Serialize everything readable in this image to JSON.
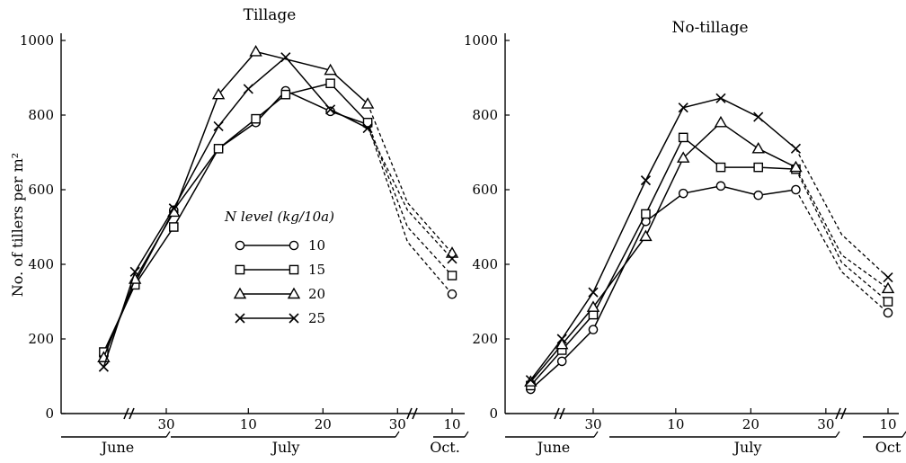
{
  "shared_ylabel": "No. of tillers per m²",
  "legend": {
    "title": "N  level (kg/10a)",
    "items": [
      {
        "label": "10",
        "marker": "circle"
      },
      {
        "label": "15",
        "marker": "square"
      },
      {
        "label": "20",
        "marker": "triangle"
      },
      {
        "label": "25",
        "marker": "cross"
      }
    ]
  },
  "chart_data": [
    {
      "type": "line",
      "title": "Tillage",
      "ylabel": "No. of tillers per m²",
      "ylim": [
        0,
        1000
      ],
      "yticks": [
        0,
        200,
        400,
        600,
        800,
        1000
      ],
      "xticks": [
        {
          "label": "30",
          "day": 30
        },
        {
          "label": "10",
          "day": 41
        },
        {
          "label": "20",
          "day": 51
        },
        {
          "label": "30",
          "day": 61
        },
        {
          "label": "10",
          "day": 102
        }
      ],
      "months": [
        "June",
        "July",
        "Oct."
      ],
      "x_unit": "day from June 1 (axis broken before June 30 and after July 30)",
      "series": [
        {
          "name": "10",
          "marker": "circle",
          "points": [
            [
              18,
              155
            ],
            [
              24,
              350
            ],
            [
              31,
              545
            ],
            [
              37,
              710
            ],
            [
              42,
              780
            ],
            [
              46,
              865
            ],
            [
              52,
              810
            ],
            [
              57,
              775
            ]
          ],
          "late": [
            [
              102,
              320
            ]
          ]
        },
        {
          "name": "15",
          "marker": "square",
          "points": [
            [
              18,
              165
            ],
            [
              24,
              345
            ],
            [
              31,
              500
            ],
            [
              37,
              710
            ],
            [
              42,
              790
            ],
            [
              46,
              855
            ],
            [
              52,
              885
            ],
            [
              57,
              780
            ]
          ],
          "late": [
            [
              102,
              370
            ]
          ]
        },
        {
          "name": "20",
          "marker": "triangle",
          "points": [
            [
              18,
              150
            ],
            [
              24,
              360
            ],
            [
              31,
              540
            ],
            [
              37,
              855
            ],
            [
              42,
              970
            ],
            [
              52,
              920
            ],
            [
              57,
              830
            ]
          ],
          "late": [
            [
              102,
              430
            ]
          ]
        },
        {
          "name": "25",
          "marker": "cross",
          "points": [
            [
              18,
              125
            ],
            [
              24,
              380
            ],
            [
              31,
              550
            ],
            [
              37,
              770
            ],
            [
              41,
              870
            ],
            [
              46,
              955
            ],
            [
              52,
              815
            ],
            [
              57,
              765
            ]
          ],
          "late": [
            [
              102,
              415
            ]
          ]
        }
      ],
      "dashed_mid": [
        {
          "name": "10",
          "points": [
            [
              80,
              460
            ]
          ]
        },
        {
          "name": "15",
          "points": [
            [
              80,
              500
            ]
          ]
        },
        {
          "name": "20",
          "points": [
            [
              80,
              565
            ]
          ]
        },
        {
          "name": "25",
          "points": [
            [
              80,
              545
            ]
          ]
        }
      ]
    },
    {
      "type": "line",
      "title": "No-tillage",
      "ylabel": "No. of tillers per m²",
      "ylim": [
        0,
        1000
      ],
      "yticks": [
        0,
        200,
        400,
        600,
        800,
        1000
      ],
      "xticks": [
        {
          "label": "30",
          "day": 30
        },
        {
          "label": "10",
          "day": 41
        },
        {
          "label": "20",
          "day": 51
        },
        {
          "label": "30",
          "day": 61
        },
        {
          "label": "10",
          "day": 102
        }
      ],
      "months": [
        "June",
        "July",
        "Oct"
      ],
      "x_unit": "day from June 1 (axis broken before June 30 and after July 30)",
      "series": [
        {
          "name": "10",
          "marker": "circle",
          "points": [
            [
              18,
              65
            ],
            [
              24,
              140
            ],
            [
              30,
              225
            ],
            [
              37,
              515
            ],
            [
              42,
              590
            ],
            [
              47,
              610
            ],
            [
              52,
              585
            ],
            [
              57,
              600
            ]
          ],
          "late": [
            [
              102,
              270
            ]
          ]
        },
        {
          "name": "15",
          "marker": "square",
          "points": [
            [
              18,
              75
            ],
            [
              24,
              170
            ],
            [
              30,
              265
            ],
            [
              37,
              535
            ],
            [
              42,
              740
            ],
            [
              47,
              660
            ],
            [
              52,
              660
            ],
            [
              57,
              655
            ]
          ],
          "late": [
            [
              102,
              300
            ]
          ]
        },
        {
          "name": "20",
          "marker": "triangle",
          "points": [
            [
              18,
              85
            ],
            [
              24,
              185
            ],
            [
              30,
              285
            ],
            [
              37,
              475
            ],
            [
              42,
              685
            ],
            [
              47,
              780
            ],
            [
              52,
              710
            ],
            [
              57,
              660
            ]
          ],
          "late": [
            [
              102,
              335
            ]
          ]
        },
        {
          "name": "25",
          "marker": "cross",
          "points": [
            [
              18,
              90
            ],
            [
              24,
              200
            ],
            [
              30,
              325
            ],
            [
              37,
              625
            ],
            [
              42,
              820
            ],
            [
              47,
              845
            ],
            [
              52,
              795
            ],
            [
              57,
              710
            ]
          ],
          "late": [
            [
              102,
              365
            ]
          ]
        }
      ],
      "dashed_mid": [
        {
          "name": "10",
          "points": [
            [
              80,
              380
            ]
          ]
        },
        {
          "name": "15",
          "points": [
            [
              80,
              405
            ]
          ]
        },
        {
          "name": "20",
          "points": [
            [
              80,
              425
            ]
          ]
        },
        {
          "name": "25",
          "points": [
            [
              80,
              480
            ]
          ]
        }
      ]
    }
  ]
}
